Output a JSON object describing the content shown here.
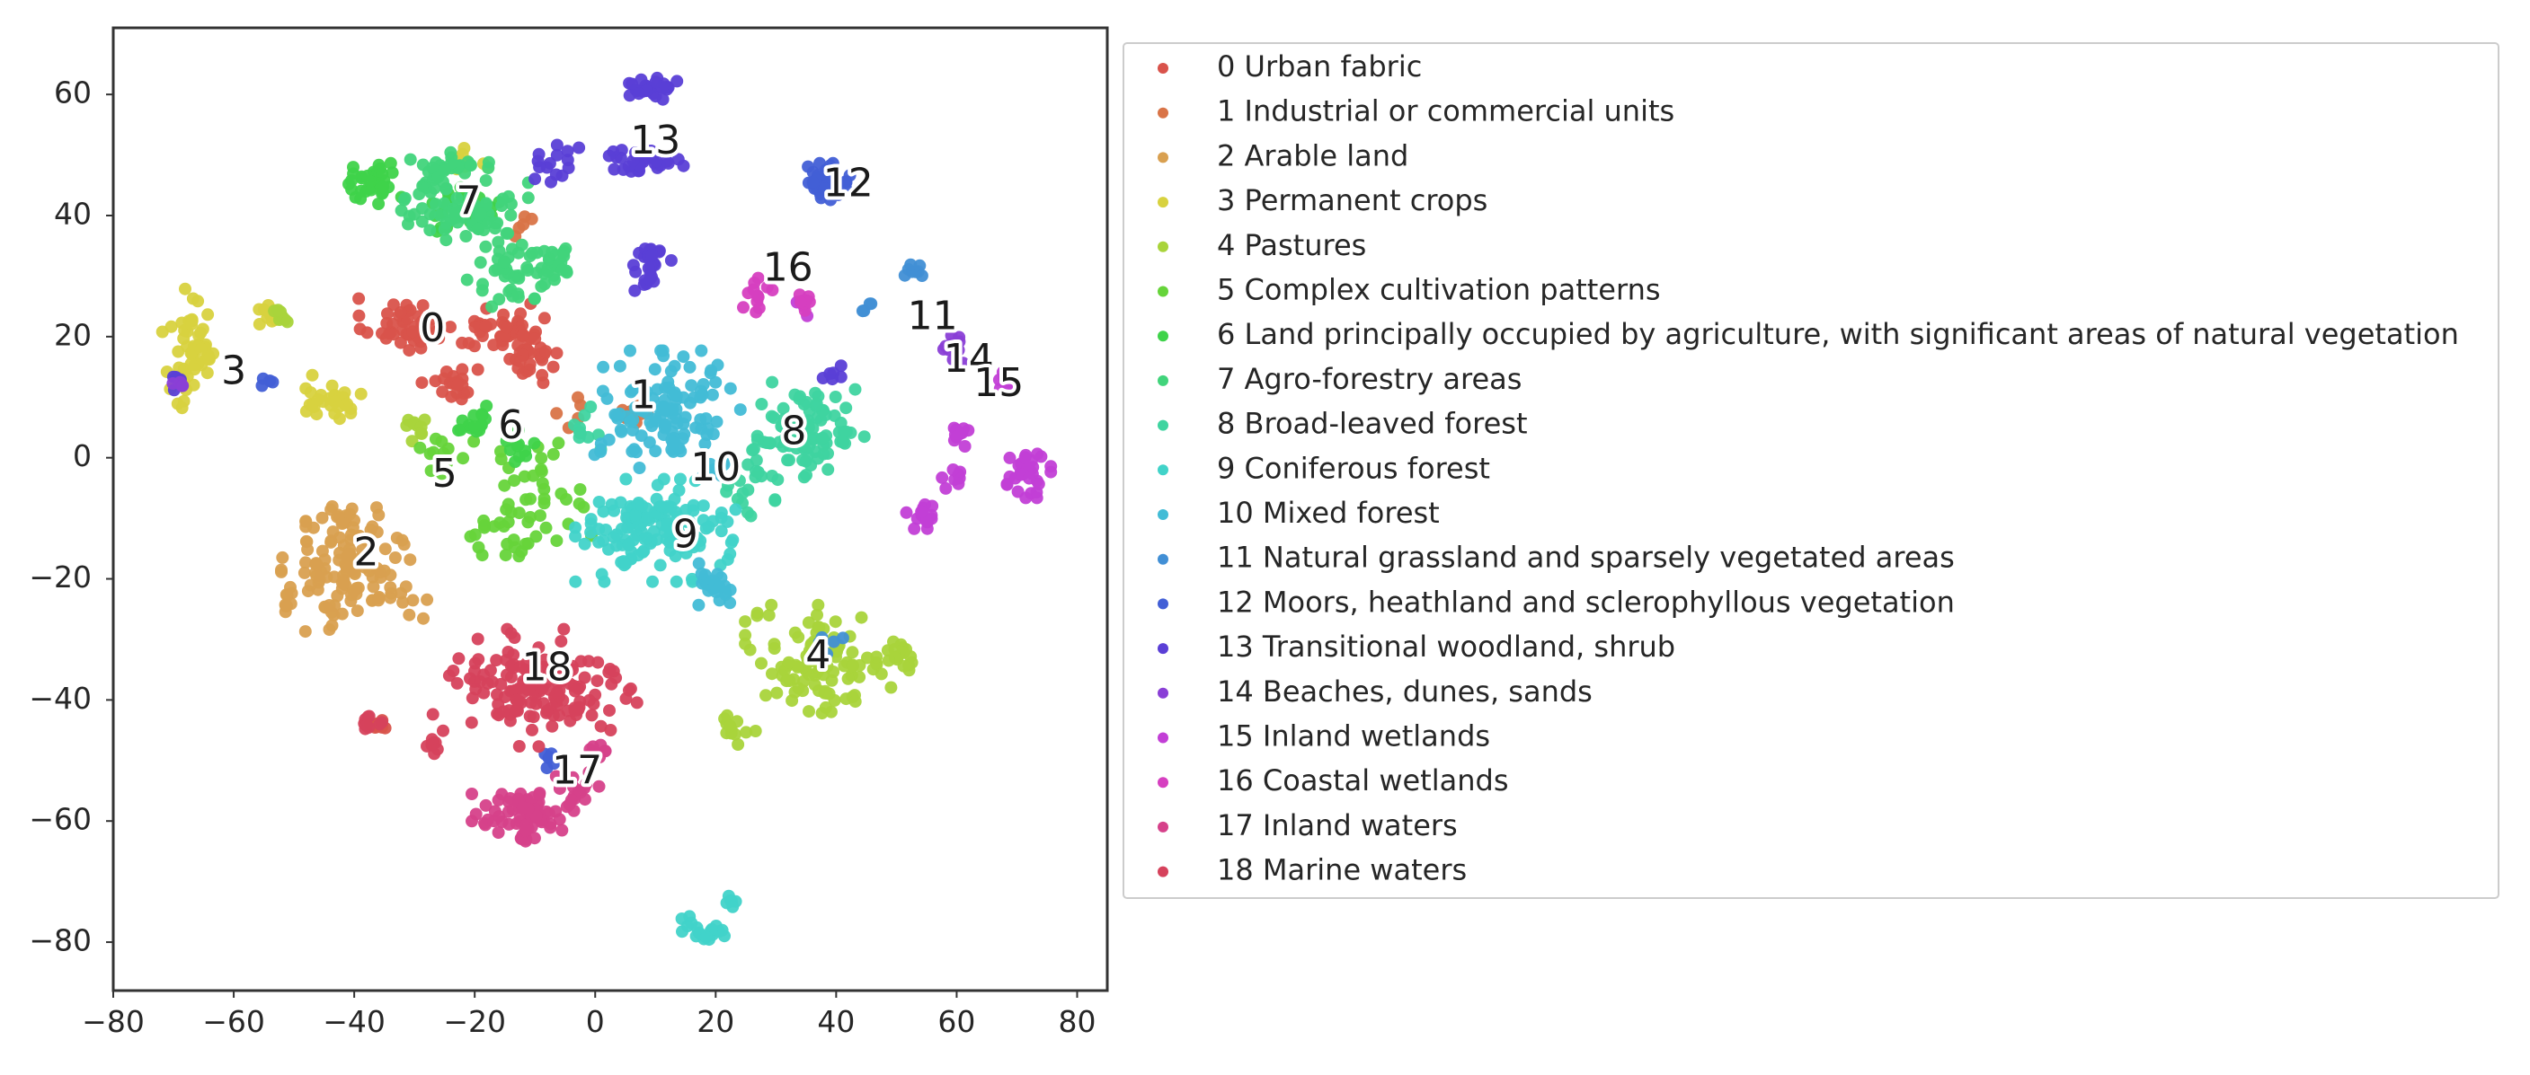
{
  "chart_data": {
    "type": "scatter",
    "title": "",
    "xlabel": "",
    "ylabel": "",
    "xlim": [
      -80,
      85
    ],
    "ylim": [
      -88,
      71
    ],
    "xticks": [
      -80,
      -60,
      -40,
      -20,
      0,
      20,
      40,
      60,
      80
    ],
    "yticks": [
      60,
      40,
      20,
      0,
      -20,
      -40,
      -60,
      -80
    ],
    "grid": false,
    "legend_position": "right, outside plot",
    "series": [
      {
        "name": "0 Urban fabric",
        "color": "#d9534b",
        "blobs": [
          [
            -32,
            22,
            6,
            4,
            45
          ],
          [
            -18,
            21,
            5,
            3,
            25
          ],
          [
            -12,
            20,
            5,
            5,
            35
          ],
          [
            -24,
            12,
            4,
            3,
            20
          ],
          [
            -36,
            -44,
            1.2,
            1,
            10
          ],
          [
            -10,
            16,
            3,
            3,
            15
          ]
        ],
        "label": {
          "text": "0",
          "x": -27,
          "y": 21
        }
      },
      {
        "name": "1 Industrial or commercial units",
        "color": "#d97447",
        "blobs": [
          [
            7,
            7,
            3,
            3,
            10
          ],
          [
            -12,
            39,
            2,
            2,
            5
          ],
          [
            -4,
            8,
            2,
            3,
            5
          ]
        ],
        "label": {
          "text": "1",
          "x": 8,
          "y": 10
        }
      },
      {
        "name": "2 Arable land",
        "color": "#d9a050",
        "blobs": [
          [
            -40,
            -19,
            10,
            8,
            110
          ],
          [
            -51,
            -24,
            1,
            1.5,
            8
          ],
          [
            -42,
            -10,
            5,
            3,
            20
          ]
        ],
        "label": {
          "text": "2",
          "x": -38,
          "y": -16
        }
      },
      {
        "name": "3 Permanent crops",
        "color": "#d8d23f",
        "blobs": [
          [
            -67,
            17,
            4,
            9,
            55
          ],
          [
            -44,
            10,
            5,
            3,
            30
          ],
          [
            -20,
            49,
            4,
            2,
            10
          ],
          [
            -54,
            24,
            2,
            2,
            10
          ]
        ],
        "label": {
          "text": "3",
          "x": -60,
          "y": 14
        }
      },
      {
        "name": "4 Pastures",
        "color": "#a9d43b",
        "blobs": [
          [
            37,
            -34,
            10,
            8,
            100
          ],
          [
            23,
            -45,
            3,
            2,
            12
          ],
          [
            50,
            -33,
            4,
            3,
            20
          ],
          [
            -30,
            5,
            3,
            2,
            10
          ],
          [
            -52,
            23,
            1.5,
            1.5,
            8
          ]
        ],
        "label": {
          "text": "4",
          "x": 37,
          "y": -33
        }
      },
      {
        "name": "5 Complex cultivation patterns",
        "color": "#66d43a",
        "blobs": [
          [
            -25,
            1,
            4,
            3,
            15
          ],
          [
            -10,
            -6,
            8,
            8,
            40
          ],
          [
            -17,
            -13,
            5,
            3,
            15
          ]
        ],
        "label": {
          "text": "5",
          "x": -25,
          "y": -3
        }
      },
      {
        "name": "6 Land principally occupied by agriculture, with significant areas of natural vegetation",
        "color": "#3fd34a",
        "blobs": [
          [
            -37,
            45,
            4,
            3,
            35
          ],
          [
            -20,
            6,
            3,
            3,
            15
          ],
          [
            -12,
            2,
            3,
            3,
            10
          ],
          [
            -22,
            41,
            5,
            3,
            20
          ]
        ],
        "label": {
          "text": "6",
          "x": -14,
          "y": 5
        }
      },
      {
        "name": "7 Agro-forestry areas",
        "color": "#41d47b",
        "blobs": [
          [
            -22,
            42,
            9,
            6,
            80
          ],
          [
            -14,
            31,
            6,
            5,
            45
          ],
          [
            -6,
            32,
            3,
            3,
            20
          ],
          [
            -25,
            48,
            5,
            2,
            20
          ]
        ],
        "label": {
          "text": "7",
          "x": -21,
          "y": 42
        }
      },
      {
        "name": "8 Broad-leaved forest",
        "color": "#3fd4a0",
        "blobs": [
          [
            35,
            4,
            8,
            7,
            95
          ],
          [
            25,
            -6,
            4,
            3,
            15
          ],
          [
            -2,
            5,
            3,
            3,
            10
          ]
        ],
        "label": {
          "text": "8",
          "x": 33,
          "y": 4
        }
      },
      {
        "name": "9 Coniferous forest",
        "color": "#41d3c9",
        "blobs": [
          [
            10,
            -12,
            11,
            7,
            140
          ],
          [
            18,
            -78,
            3,
            2,
            20
          ],
          [
            22,
            -73,
            1.5,
            1,
            6
          ]
        ],
        "label": {
          "text": "9",
          "x": 15,
          "y": -13
        }
      },
      {
        "name": "10 Mixed forest",
        "color": "#42bcd6",
        "blobs": [
          [
            12,
            8,
            10,
            8,
            110
          ],
          [
            20,
            -21,
            3,
            3,
            25
          ],
          [
            20,
            -2,
            3,
            2,
            12
          ]
        ],
        "label": {
          "text": "10",
          "x": 20,
          "y": -2
        }
      },
      {
        "name": "11 Natural grassland and sparsely vegetated areas",
        "color": "#418fd5",
        "blobs": [
          [
            53,
            31,
            1.5,
            1,
            8
          ],
          [
            45,
            25,
            1,
            1,
            4
          ],
          [
            39,
            -30,
            2,
            2,
            5
          ]
        ],
        "label": {
          "text": "11",
          "x": 56,
          "y": 23
        }
      },
      {
        "name": "12 Moors, heathland and sclerophyllous vegetation",
        "color": "#425fd6",
        "blobs": [
          [
            38,
            45,
            4,
            3,
            35
          ],
          [
            -8,
            -50,
            2,
            2,
            6
          ],
          [
            -55,
            12,
            1.5,
            1.5,
            4
          ]
        ],
        "label": {
          "text": "12",
          "x": 42,
          "y": 45
        }
      },
      {
        "name": "13 Transitional woodland, shrub",
        "color": "#5a3fd6",
        "blobs": [
          [
            10,
            61,
            4,
            1.5,
            25
          ],
          [
            7,
            49,
            7,
            2,
            30
          ],
          [
            9,
            33,
            3,
            2,
            20
          ],
          [
            -6,
            49,
            4,
            3,
            15
          ],
          [
            9,
            30,
            2,
            2,
            8
          ],
          [
            39,
            14,
            1.5,
            1.5,
            6
          ],
          [
            -69,
            13,
            1.5,
            1.5,
            5
          ]
        ],
        "label": {
          "text": "13",
          "x": 10,
          "y": 52
        }
      },
      {
        "name": "14 Beaches, dunes, sands",
        "color": "#8a3fd6",
        "blobs": [
          [
            60,
            18,
            3,
            2,
            12
          ],
          [
            -69,
            12,
            1,
            1,
            4
          ]
        ],
        "label": {
          "text": "14",
          "x": 62,
          "y": 16
        }
      },
      {
        "name": "15 Inland wetlands",
        "color": "#c23fd6",
        "blobs": [
          [
            72,
            -3,
            3,
            3,
            30
          ],
          [
            60,
            4,
            2,
            2,
            10
          ],
          [
            54,
            -10,
            2,
            3,
            15
          ],
          [
            68,
            13,
            2,
            2,
            10
          ],
          [
            60,
            -4,
            2,
            2,
            8
          ],
          [
            34,
            25,
            2,
            2,
            6
          ]
        ],
        "label": {
          "text": "15",
          "x": 67,
          "y": 12
        }
      },
      {
        "name": "16 Coastal wetlands",
        "color": "#d63fc0",
        "blobs": [
          [
            27,
            27,
            2,
            3,
            12
          ],
          [
            35,
            26,
            1.5,
            1.5,
            6
          ]
        ],
        "label": {
          "text": "16",
          "x": 32,
          "y": 31
        }
      },
      {
        "name": "17 Inland waters",
        "color": "#d6418a",
        "blobs": [
          [
            -12,
            -59,
            7,
            4,
            70
          ],
          [
            -3,
            -55,
            3,
            3,
            15
          ],
          [
            0,
            -48,
            2,
            2,
            8
          ]
        ],
        "label": {
          "text": "17",
          "x": -3,
          "y": -52
        }
      },
      {
        "name": "18 Marine waters",
        "color": "#d6425c",
        "blobs": [
          [
            -10,
            -38,
            14,
            8,
            150
          ],
          [
            -37,
            -44,
            1.5,
            1.5,
            10
          ],
          [
            -27,
            -48,
            2,
            1.5,
            8
          ]
        ],
        "label": {
          "text": "18",
          "x": -8,
          "y": -35
        }
      }
    ]
  }
}
